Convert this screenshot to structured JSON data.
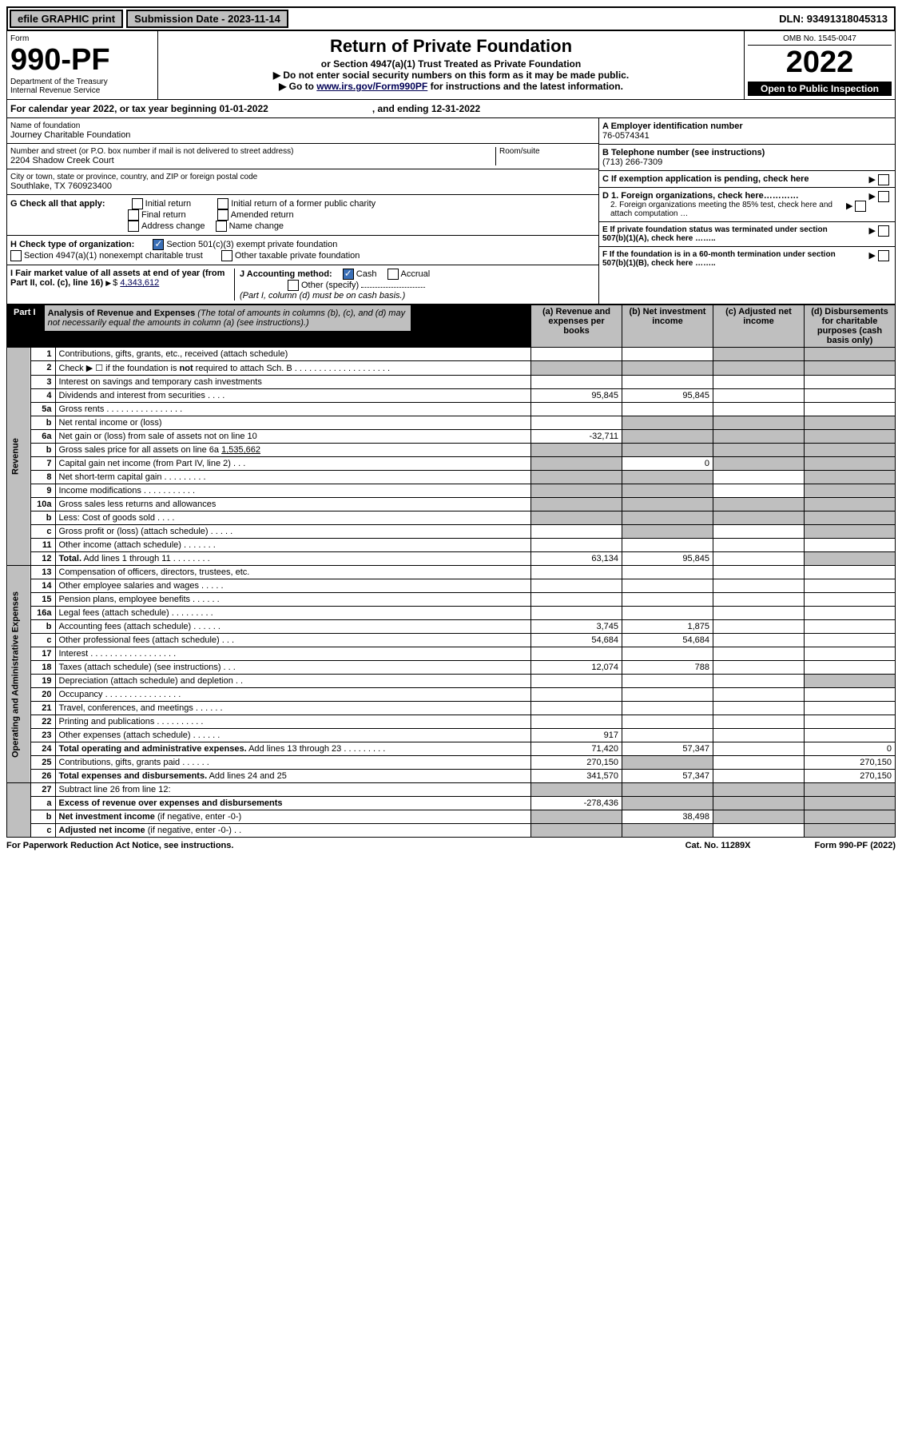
{
  "topbar": {
    "efile": "efile GRAPHIC print",
    "sub_label": "Submission Date - 2023-11-14",
    "dln": "DLN: 93491318045313"
  },
  "header": {
    "form_word": "Form",
    "form_no": "990-PF",
    "dept": "Department of the Treasury",
    "irs": "Internal Revenue Service",
    "title": "Return of Private Foundation",
    "subtitle": "or Section 4947(a)(1) Trust Treated as Private Foundation",
    "note1": "▶ Do not enter social security numbers on this form as it may be made public.",
    "note2_pre": "▶ Go to ",
    "note2_link": "www.irs.gov/Form990PF",
    "note2_post": " for instructions and the latest information.",
    "omb": "OMB No. 1545-0047",
    "year": "2022",
    "inspect": "Open to Public Inspection"
  },
  "calbar": {
    "text": "For calendar year 2022, or tax year beginning 01-01-2022",
    "ending": ", and ending 12-31-2022"
  },
  "entity": {
    "name_label": "Name of foundation",
    "name": "Journey Charitable Foundation",
    "addr_label": "Number and street (or P.O. box number if mail is not delivered to street address)",
    "addr": "2204 Shadow Creek Court",
    "room_label": "Room/suite",
    "city_label": "City or town, state or province, country, and ZIP or foreign postal code",
    "city": "Southlake, TX  760923400",
    "a_label": "A Employer identification number",
    "a_val": "76-0574341",
    "b_label": "B Telephone number (see instructions)",
    "b_val": "(713) 266-7309",
    "c_label": "C If exemption application is pending, check here",
    "d1": "D 1. Foreign organizations, check here…………",
    "d2": "2. Foreign organizations meeting the 85% test, check here and attach computation …",
    "e": "E  If private foundation status was terminated under section 507(b)(1)(A), check here ……..",
    "f": "F  If the foundation is in a 60-month termination under section 507(b)(1)(B), check here ……..",
    "g_label": "G Check all that apply:",
    "g_opts": [
      "Initial return",
      "Final return",
      "Address change",
      "Initial return of a former public charity",
      "Amended return",
      "Name change"
    ],
    "h_label": "H Check type of organization:",
    "h1": "Section 501(c)(3) exempt private foundation",
    "h2": "Section 4947(a)(1) nonexempt charitable trust",
    "h3": "Other taxable private foundation",
    "i_label": "I Fair market value of all assets at end of year (from Part II, col. (c), line 16)",
    "i_val": "4,343,612",
    "j_label": "J Accounting method:",
    "j_cash": "Cash",
    "j_accrual": "Accrual",
    "j_other": "Other (specify)",
    "j_note": "(Part I, column (d) must be on cash basis.)"
  },
  "part1": {
    "label": "Part I",
    "title": "Analysis of Revenue and Expenses",
    "title_note": " (The total of amounts in columns (b), (c), and (d) may not necessarily equal the amounts in column (a) (see instructions).)",
    "cols": {
      "a": "(a)  Revenue and expenses per books",
      "b": "(b)  Net investment income",
      "c": "(c)  Adjusted net income",
      "d": "(d)  Disbursements for charitable purposes (cash basis only)"
    }
  },
  "sections": {
    "revenue": "Revenue",
    "oae": "Operating and Administrative Expenses"
  },
  "rows": [
    {
      "n": "1",
      "t": "Contributions, gifts, grants, etc., received (attach schedule)",
      "a": "",
      "b": "",
      "c": "g",
      "d": "g"
    },
    {
      "n": "2",
      "t": "Check ▶ ☐ if the foundation is <b>not</b> required to attach Sch. B  . . . . . . . . . . . . . . . . . . . .",
      "span": true
    },
    {
      "n": "3",
      "t": "Interest on savings and temporary cash investments",
      "a": "",
      "b": "",
      "c": "",
      "d": ""
    },
    {
      "n": "4",
      "t": "Dividends and interest from securities  . . . .",
      "a": "95,845",
      "b": "95,845",
      "c": "",
      "d": ""
    },
    {
      "n": "5a",
      "t": "Gross rents  . . . . . . . . . . . . . . . .",
      "a": "",
      "b": "",
      "c": "",
      "d": ""
    },
    {
      "n": "b",
      "t": "Net rental income or (loss)  ",
      "a": "",
      "b": "g",
      "c": "g",
      "d": "g",
      "subline": true
    },
    {
      "n": "6a",
      "t": "Net gain or (loss) from sale of assets not on line 10",
      "a": "-32,711",
      "b": "g",
      "c": "g",
      "d": "g"
    },
    {
      "n": "b",
      "t": "Gross sales price for all assets on line 6a   <u>        1,535,662</u>",
      "span": true
    },
    {
      "n": "7",
      "t": "Capital gain net income (from Part IV, line 2)  . . .",
      "a": "g",
      "b": "0",
      "c": "g",
      "d": "g"
    },
    {
      "n": "8",
      "t": "Net short-term capital gain  . . . . . . . . .",
      "a": "g",
      "b": "g",
      "c": "",
      "d": "g"
    },
    {
      "n": "9",
      "t": "Income modifications  . . . . . . . . . . .",
      "a": "g",
      "b": "g",
      "c": "",
      "d": "g"
    },
    {
      "n": "10a",
      "t": "Gross sales less returns and allowances",
      "a": "g",
      "b": "g",
      "c": "g",
      "d": "g",
      "subline": true
    },
    {
      "n": "b",
      "t": "Less: Cost of goods sold  . . . .",
      "a": "g",
      "b": "g",
      "c": "g",
      "d": "g",
      "subline": true
    },
    {
      "n": "c",
      "t": "Gross profit or (loss) (attach schedule)  . . . . .",
      "a": "",
      "b": "g",
      "c": "",
      "d": "g"
    },
    {
      "n": "11",
      "t": "Other income (attach schedule)  . . . . . . .",
      "a": "",
      "b": "",
      "c": "",
      "d": ""
    },
    {
      "n": "12",
      "t": "<b>Total.</b> Add lines 1 through 11  . . . . . . . .",
      "a": "63,134",
      "b": "95,845",
      "c": "",
      "d": "g"
    }
  ],
  "rows2": [
    {
      "n": "13",
      "t": "Compensation of officers, directors, trustees, etc.",
      "a": "",
      "b": "",
      "c": "",
      "d": ""
    },
    {
      "n": "14",
      "t": "Other employee salaries and wages  . . . . .",
      "a": "",
      "b": "",
      "c": "",
      "d": ""
    },
    {
      "n": "15",
      "t": "Pension plans, employee benefits  . . . . . .",
      "a": "",
      "b": "",
      "c": "",
      "d": ""
    },
    {
      "n": "16a",
      "t": "Legal fees (attach schedule) . . . . . . . . .",
      "a": "",
      "b": "",
      "c": "",
      "d": ""
    },
    {
      "n": "b",
      "t": "Accounting fees (attach schedule) . . . . . .",
      "a": "3,745",
      "b": "1,875",
      "c": "",
      "d": ""
    },
    {
      "n": "c",
      "t": "Other professional fees (attach schedule)  . . .",
      "a": "54,684",
      "b": "54,684",
      "c": "",
      "d": ""
    },
    {
      "n": "17",
      "t": "Interest . . . . . . . . . . . . . . . . . .",
      "a": "",
      "b": "",
      "c": "",
      "d": ""
    },
    {
      "n": "18",
      "t": "Taxes (attach schedule) (see instructions)  . . .",
      "a": "12,074",
      "b": "788",
      "c": "",
      "d": ""
    },
    {
      "n": "19",
      "t": "Depreciation (attach schedule) and depletion  . .",
      "a": "",
      "b": "",
      "c": "",
      "d": "g"
    },
    {
      "n": "20",
      "t": "Occupancy . . . . . . . . . . . . . . . .",
      "a": "",
      "b": "",
      "c": "",
      "d": ""
    },
    {
      "n": "21",
      "t": "Travel, conferences, and meetings . . . . . .",
      "a": "",
      "b": "",
      "c": "",
      "d": ""
    },
    {
      "n": "22",
      "t": "Printing and publications . . . . . . . . . .",
      "a": "",
      "b": "",
      "c": "",
      "d": ""
    },
    {
      "n": "23",
      "t": "Other expenses (attach schedule) . . . . . .",
      "a": "917",
      "b": "",
      "c": "",
      "d": ""
    },
    {
      "n": "24",
      "t": "<b>Total operating and administrative expenses.</b> Add lines 13 through 23 . . . . . . . . .",
      "a": "71,420",
      "b": "57,347",
      "c": "",
      "d": "0"
    },
    {
      "n": "25",
      "t": "Contributions, gifts, grants paid  . . . . . .",
      "a": "270,150",
      "b": "g",
      "c": "",
      "d": "270,150"
    },
    {
      "n": "26",
      "t": "<b>Total expenses and disbursements.</b> Add lines 24 and 25",
      "a": "341,570",
      "b": "57,347",
      "c": "",
      "d": "270,150"
    }
  ],
  "rows3": [
    {
      "n": "27",
      "t": "Subtract line 26 from line 12:",
      "a": "g",
      "b": "g",
      "c": "g",
      "d": "g"
    },
    {
      "n": "a",
      "t": "<b>Excess of revenue over expenses and disbursements</b>",
      "a": "-278,436",
      "b": "g",
      "c": "g",
      "d": "g"
    },
    {
      "n": "b",
      "t": "<b>Net investment income</b> (if negative, enter -0-)",
      "a": "g",
      "b": "38,498",
      "c": "g",
      "d": "g"
    },
    {
      "n": "c",
      "t": "<b>Adjusted net income</b> (if negative, enter -0-)  . .",
      "a": "g",
      "b": "g",
      "c": "",
      "d": "g"
    }
  ],
  "footer": {
    "left": "For Paperwork Reduction Act Notice, see instructions.",
    "mid": "Cat. No. 11289X",
    "right": "Form 990-PF (2022)"
  },
  "colors": {
    "grey": "#bfbfbf",
    "black": "#000000",
    "link": "#000088"
  }
}
